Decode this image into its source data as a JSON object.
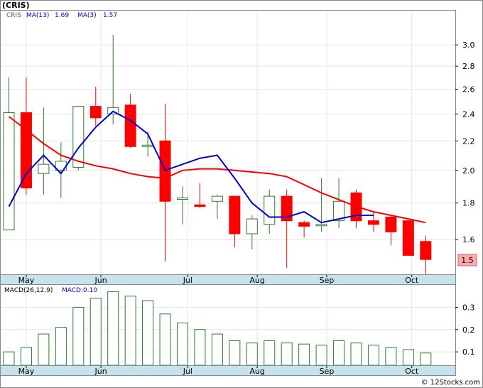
{
  "title": "(CRIS)",
  "legend": {
    "symbol": "CRIS",
    "ma13_label": "MA(13)",
    "ma13_value": "1.69",
    "ma3_label": "MA(3)",
    "ma3_value": "1.57",
    "macd_label": "MACD(26,12,9)",
    "macd_value_label": "MACD:0.10"
  },
  "last_price_badge": "1.5",
  "credit": "© 12Stocks.com",
  "colors": {
    "up": "#2e7d2e",
    "down": "#ff0000",
    "ma_red": "#ff0000",
    "ma_blue": "#0000cc",
    "date_band": "#c6e2ea",
    "macd_bar": "#2e7d2e",
    "badge_bg": "#ffaaaa"
  },
  "chart_data": [
    {
      "type": "candlestick",
      "title": "(CRIS)",
      "y_scale": "log",
      "ylim": [
        1.43,
        3.35
      ],
      "yticks": [
        "1.6",
        "1.8",
        "2.0",
        "2.2",
        "2.4",
        "2.6",
        "2.8",
        "3.0"
      ],
      "month_labels": [
        {
          "label": "May",
          "week_index": 1
        },
        {
          "label": "Jun",
          "week_index": 5.3
        },
        {
          "label": "Jul",
          "week_index": 10.3
        },
        {
          "label": "Aug",
          "week_index": 14.3
        },
        {
          "label": "Sep",
          "week_index": 18.3
        },
        {
          "label": "Oct",
          "week_index": 23.2
        }
      ],
      "candles": [
        {
          "open": 1.65,
          "high": 2.7,
          "low": 1.65,
          "close": 2.41
        },
        {
          "open": 2.41,
          "high": 2.7,
          "low": 1.85,
          "close": 1.89
        },
        {
          "open": 1.98,
          "high": 2.45,
          "low": 1.85,
          "close": 2.04
        },
        {
          "open": 2.0,
          "high": 2.19,
          "low": 1.83,
          "close": 2.06
        },
        {
          "open": 2.02,
          "high": 2.46,
          "low": 2.0,
          "close": 2.46
        },
        {
          "open": 2.46,
          "high": 2.62,
          "low": 2.31,
          "close": 2.37
        },
        {
          "open": 2.4,
          "high": 3.1,
          "low": 2.32,
          "close": 2.45
        },
        {
          "open": 2.47,
          "high": 2.56,
          "low": 2.15,
          "close": 2.16
        },
        {
          "open": 2.16,
          "high": 2.27,
          "low": 2.09,
          "close": 2.17
        },
        {
          "open": 2.2,
          "high": 2.48,
          "low": 1.49,
          "close": 1.81
        },
        {
          "open": 1.83,
          "high": 1.9,
          "low": 1.68,
          "close": 1.83
        },
        {
          "open": 1.79,
          "high": 1.92,
          "low": 1.77,
          "close": 1.78
        },
        {
          "open": 1.81,
          "high": 1.85,
          "low": 1.71,
          "close": 1.84
        },
        {
          "open": 1.84,
          "high": 1.84,
          "low": 1.56,
          "close": 1.63
        },
        {
          "open": 1.63,
          "high": 1.73,
          "low": 1.55,
          "close": 1.71
        },
        {
          "open": 1.68,
          "high": 1.88,
          "low": 1.63,
          "close": 1.84
        },
        {
          "open": 1.84,
          "high": 1.88,
          "low": 1.46,
          "close": 1.7
        },
        {
          "open": 1.69,
          "high": 1.7,
          "low": 1.61,
          "close": 1.67
        },
        {
          "open": 1.68,
          "high": 1.95,
          "low": 1.64,
          "close": 1.68
        },
        {
          "open": 1.7,
          "high": 1.95,
          "low": 1.66,
          "close": 1.81
        },
        {
          "open": 1.86,
          "high": 1.88,
          "low": 1.66,
          "close": 1.7
        },
        {
          "open": 1.7,
          "high": 1.75,
          "low": 1.64,
          "close": 1.68
        },
        {
          "open": 1.72,
          "high": 1.73,
          "low": 1.57,
          "close": 1.64
        },
        {
          "open": 1.7,
          "high": 1.7,
          "low": 1.52,
          "close": 1.52
        },
        {
          "open": 1.59,
          "high": 1.62,
          "low": 1.41,
          "close": 1.5
        }
      ],
      "series": [
        {
          "name": "MA(13)",
          "color": "#ff0000",
          "start_index": 0,
          "values": [
            2.38,
            2.28,
            2.18,
            2.1,
            2.06,
            2.03,
            2.01,
            1.98,
            1.96,
            1.95,
            2.0,
            2.01,
            2.01,
            2.0,
            1.99,
            1.98,
            1.96,
            1.91,
            1.86,
            1.82,
            1.78,
            1.75,
            1.73,
            1.71,
            1.69
          ]
        },
        {
          "name": "MA(3)",
          "color": "#0000cc",
          "start_index": 0,
          "values": [
            1.78,
            1.98,
            2.1,
            1.98,
            2.15,
            2.3,
            2.42,
            2.35,
            2.25,
            2.0,
            2.04,
            2.08,
            2.1,
            1.95,
            1.8,
            1.72,
            1.72,
            1.75,
            1.69,
            1.71,
            1.73,
            1.73,
            null,
            null,
            null
          ]
        }
      ]
    },
    {
      "type": "bar",
      "title": "MACD(26,12,9)",
      "ylim": [
        0.04,
        0.4
      ],
      "yticks": [
        "0.1",
        "0.2",
        "0.3"
      ],
      "values": [
        0.1,
        0.12,
        0.18,
        0.21,
        0.3,
        0.34,
        0.37,
        0.35,
        0.33,
        0.27,
        0.23,
        0.2,
        0.18,
        0.15,
        0.14,
        0.15,
        0.14,
        0.135,
        0.13,
        0.15,
        0.14,
        0.13,
        0.12,
        0.11,
        0.095
      ]
    }
  ]
}
